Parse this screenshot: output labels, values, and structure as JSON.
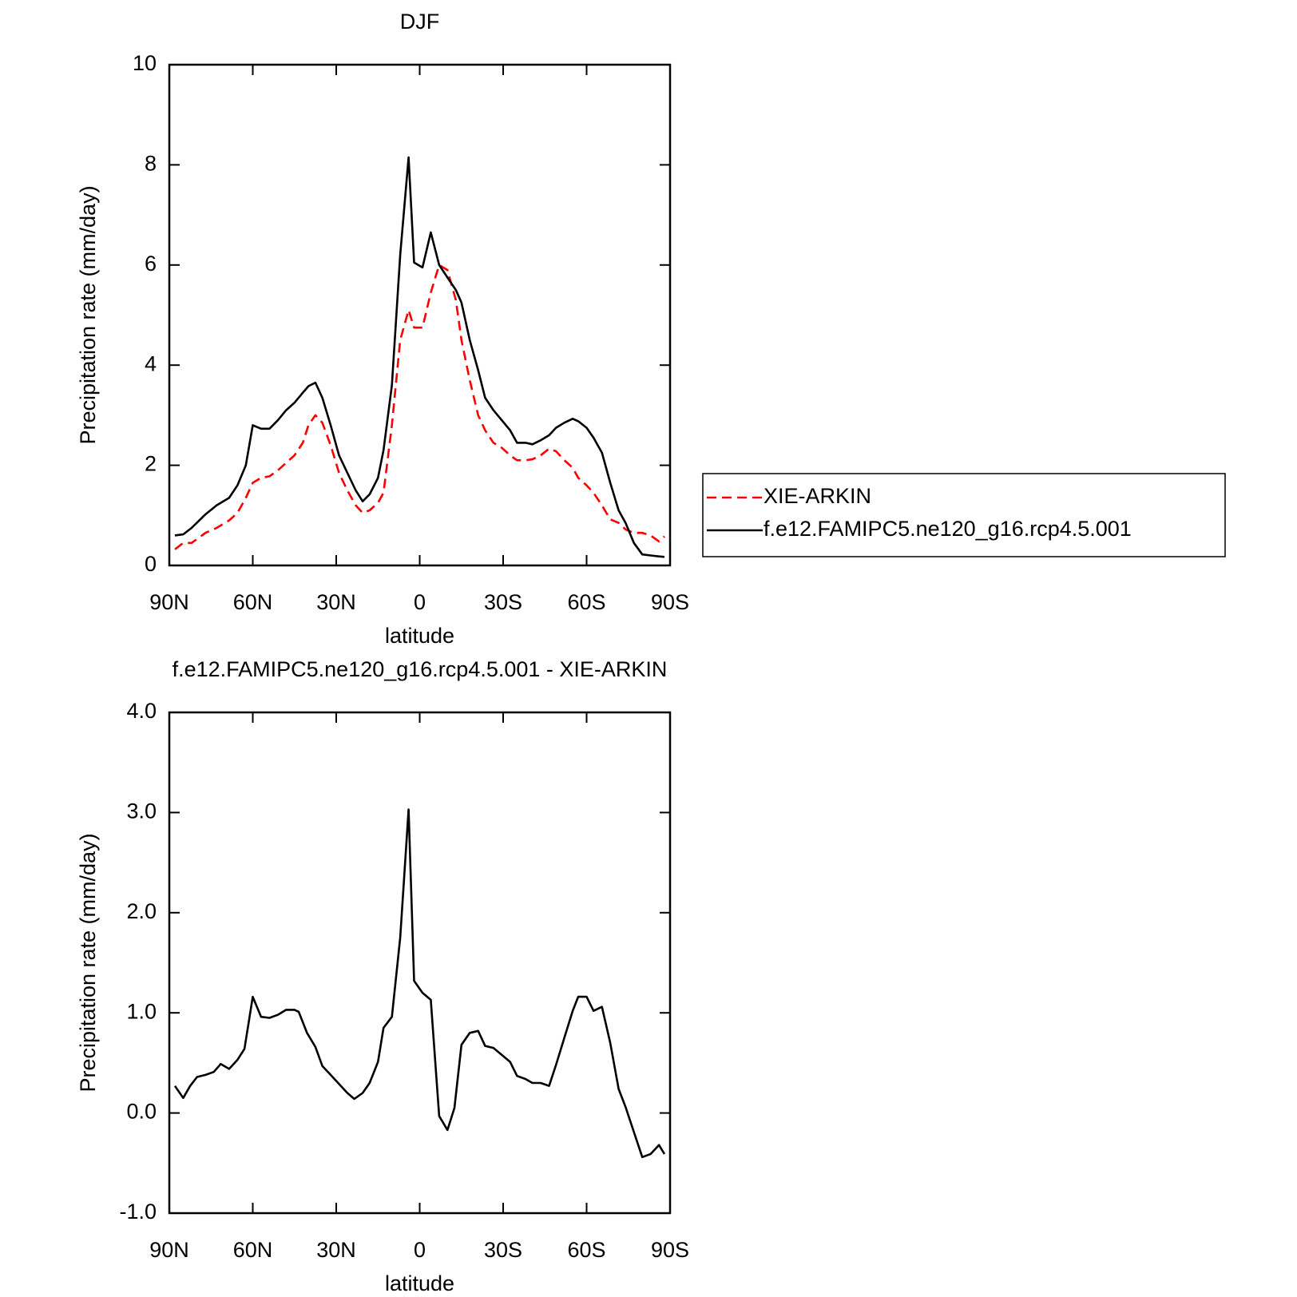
{
  "chart_data": [
    {
      "type": "line",
      "title": "DJF",
      "xlabel": "latitude",
      "ylabel": "Precipitation rate (mm/day)",
      "x": [
        88,
        85,
        82,
        77,
        73,
        68.5,
        65.5,
        62.5,
        60,
        57,
        54,
        51,
        48,
        45,
        42,
        40,
        37.5,
        35,
        32,
        29,
        26,
        23,
        20.5,
        18,
        15,
        13,
        10,
        7,
        4,
        2,
        -1,
        -4,
        -7,
        -10,
        -13,
        -15,
        -18,
        -21,
        -23.5,
        -26.5,
        -29.5,
        -32.5,
        -35,
        -38,
        -40.5,
        -43.5,
        -46.5,
        -49,
        -52,
        -55,
        -57,
        -60,
        -62.5,
        -65.5,
        -68.5,
        -71.5,
        -74,
        -77,
        -80,
        -83,
        -86,
        -88
      ],
      "series": [
        {
          "name": "XIE-ARKIN",
          "color": "#ff0000",
          "dash": true,
          "values": [
            0.32,
            0.45,
            0.45,
            0.65,
            0.75,
            0.9,
            1.05,
            1.35,
            1.65,
            1.75,
            1.78,
            1.9,
            2.05,
            2.2,
            2.45,
            2.8,
            3.0,
            2.85,
            2.4,
            1.85,
            1.5,
            1.2,
            1.05,
            1.1,
            1.25,
            1.45,
            2.8,
            4.5,
            5.1,
            4.75,
            4.75,
            5.45,
            6.0,
            5.9,
            5.3,
            4.5,
            3.7,
            3.0,
            2.7,
            2.45,
            2.35,
            2.2,
            2.1,
            2.1,
            2.12,
            2.2,
            2.33,
            2.28,
            2.1,
            1.95,
            1.75,
            1.6,
            1.45,
            1.2,
            0.92,
            0.85,
            0.72,
            0.65,
            0.65,
            0.6,
            0.48,
            0.58
          ]
        },
        {
          "name": "f.e12.FAMIPC5.ne120_g16.rcp4.5.001",
          "color": "#000000",
          "dash": false,
          "values": [
            0.6,
            0.62,
            0.75,
            1.02,
            1.2,
            1.35,
            1.6,
            2.0,
            2.8,
            2.73,
            2.73,
            2.9,
            3.1,
            3.25,
            3.45,
            3.58,
            3.65,
            3.35,
            2.8,
            2.2,
            1.85,
            1.5,
            1.28,
            1.42,
            1.75,
            2.3,
            3.6,
            6.2,
            8.15,
            6.05,
            5.95,
            6.65,
            6.0,
            5.75,
            5.5,
            5.25,
            4.5,
            3.9,
            3.35,
            3.1,
            2.9,
            2.7,
            2.45,
            2.45,
            2.42,
            2.5,
            2.6,
            2.75,
            2.85,
            2.93,
            2.88,
            2.75,
            2.55,
            2.25,
            1.65,
            1.1,
            0.85,
            0.45,
            0.22,
            0.2,
            0.18,
            0.17
          ]
        }
      ],
      "xlim": [
        90,
        -90
      ],
      "xticks": [
        {
          "value": 90,
          "label": "90N"
        },
        {
          "value": 60,
          "label": "60N"
        },
        {
          "value": 30,
          "label": "30N"
        },
        0,
        {
          "value": -30,
          "label": "30S"
        },
        {
          "value": -60,
          "label": "60S"
        },
        {
          "value": -90,
          "label": "90S"
        }
      ],
      "ylim": [
        0,
        10
      ],
      "yticks": [
        0,
        2,
        4,
        6,
        8,
        10
      ],
      "legend": "outside-right"
    },
    {
      "type": "line",
      "title": "f.e12.FAMIPC5.ne120_g16.rcp4.5.001 - XIE-ARKIN",
      "xlabel": "latitude",
      "ylabel": "Precipitation rate (mm/day)",
      "x": [
        88,
        85,
        82.5,
        80,
        77,
        74,
        71.5,
        68.5,
        65.5,
        63,
        60,
        57,
        54,
        51,
        48,
        45,
        43.5,
        40.5,
        37.5,
        35,
        32,
        29,
        26,
        23.5,
        20.5,
        18,
        15,
        13,
        10,
        7,
        4,
        2,
        -1,
        -4,
        -7,
        -10,
        -12.5,
        -15,
        -18,
        -21,
        -23.5,
        -26.5,
        -29.5,
        -32.5,
        -35,
        -38,
        -40.5,
        -43.5,
        -46.5,
        -49,
        -52,
        -55,
        -57,
        -60,
        -62.5,
        -65.5,
        -68.5,
        -71.5,
        -74,
        -77,
        -80,
        -83,
        -86,
        -88
      ],
      "series": [
        {
          "color": "#000000",
          "dash": false,
          "values": [
            0.27,
            0.15,
            0.27,
            0.36,
            0.38,
            0.41,
            0.49,
            0.44,
            0.53,
            0.64,
            1.16,
            0.96,
            0.95,
            0.98,
            1.03,
            1.03,
            1.01,
            0.8,
            0.66,
            0.47,
            0.38,
            0.29,
            0.2,
            0.14,
            0.2,
            0.3,
            0.51,
            0.85,
            0.96,
            1.75,
            3.03,
            1.32,
            1.2,
            1.13,
            -0.03,
            -0.17,
            0.05,
            0.68,
            0.8,
            0.82,
            0.67,
            0.65,
            0.58,
            0.51,
            0.37,
            0.34,
            0.3,
            0.3,
            0.27,
            0.48,
            0.75,
            1.02,
            1.16,
            1.16,
            1.02,
            1.06,
            0.7,
            0.24,
            0.06,
            -0.19,
            -0.44,
            -0.41,
            -0.32,
            -0.41
          ]
        }
      ],
      "xlim": [
        90,
        -90
      ],
      "xticks": [
        {
          "value": 90,
          "label": "90N"
        },
        {
          "value": 60,
          "label": "60N"
        },
        {
          "value": 30,
          "label": "30N"
        },
        0,
        {
          "value": -30,
          "label": "30S"
        },
        {
          "value": -60,
          "label": "60S"
        },
        {
          "value": -90,
          "label": "90S"
        }
      ],
      "ylim": [
        -1,
        4
      ],
      "yticks": [
        {
          "value": -1,
          "label": "-1.0"
        },
        {
          "value": 0,
          "label": "0.0"
        },
        {
          "value": 1,
          "label": "1.0"
        },
        {
          "value": 2,
          "label": "2.0"
        },
        {
          "value": 3,
          "label": "3.0"
        },
        {
          "value": 4,
          "label": "4.0"
        }
      ]
    }
  ]
}
